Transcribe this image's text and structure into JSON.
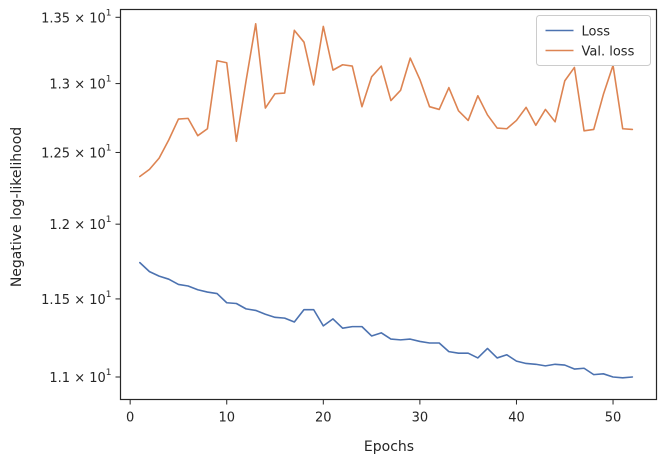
{
  "chart_data": {
    "type": "line",
    "xlabel": "Epochs",
    "ylabel": "Negative log-likelihood",
    "xlim": [
      -1,
      54.5
    ],
    "ylim": [
      10.86,
      13.56
    ],
    "y_scale": "log",
    "grid": false,
    "legend_placement": "top-right",
    "x_ticks": [
      0,
      10,
      20,
      30,
      40,
      50
    ],
    "x_tick_labels": [
      "0",
      "10",
      "20",
      "30",
      "40",
      "50"
    ],
    "y_ticks": [
      11.0,
      11.5,
      12.0,
      12.5,
      13.0,
      13.5
    ],
    "y_tick_labels": [
      {
        "mantissa": "1.1",
        "exp": "1"
      },
      {
        "mantissa": "1.15",
        "exp": "1"
      },
      {
        "mantissa": "1.2",
        "exp": "1"
      },
      {
        "mantissa": "1.25",
        "exp": "1"
      },
      {
        "mantissa": "1.3",
        "exp": "1"
      },
      {
        "mantissa": "1.35",
        "exp": "1"
      }
    ],
    "series": [
      {
        "name": "Loss",
        "color": "#4c72b0",
        "x": [
          1,
          2,
          3,
          4,
          5,
          6,
          7,
          8,
          9,
          10,
          11,
          12,
          13,
          14,
          15,
          16,
          17,
          18,
          19,
          20,
          21,
          22,
          23,
          24,
          25,
          26,
          27,
          28,
          29,
          30,
          31,
          32,
          33,
          34,
          35,
          36,
          37,
          38,
          39,
          40,
          41,
          42,
          43,
          44,
          45,
          46,
          47,
          48,
          49,
          50,
          51,
          52
        ],
        "values": [
          11.74,
          11.68,
          11.65,
          11.63,
          11.595,
          11.585,
          11.56,
          11.545,
          11.535,
          11.475,
          11.47,
          11.435,
          11.425,
          11.4,
          11.38,
          11.375,
          11.35,
          11.43,
          11.43,
          11.325,
          11.37,
          11.31,
          11.32,
          11.32,
          11.26,
          11.28,
          11.24,
          11.235,
          11.24,
          11.225,
          11.215,
          11.215,
          11.16,
          11.15,
          11.15,
          11.12,
          11.18,
          11.12,
          11.14,
          11.1,
          11.085,
          11.08,
          11.07,
          11.08,
          11.075,
          11.05,
          11.055,
          11.015,
          11.02,
          11.0,
          10.995,
          11.0
        ]
      },
      {
        "name": "Val. loss",
        "color": "#dd8452",
        "x": [
          1,
          2,
          3,
          4,
          5,
          6,
          7,
          8,
          9,
          10,
          11,
          12,
          13,
          14,
          15,
          16,
          17,
          18,
          19,
          20,
          21,
          22,
          23,
          24,
          25,
          26,
          27,
          28,
          29,
          30,
          31,
          32,
          33,
          34,
          35,
          36,
          37,
          38,
          39,
          40,
          41,
          42,
          43,
          44,
          45,
          46,
          47,
          48,
          49,
          50,
          51,
          52
        ],
        "values": [
          12.33,
          12.38,
          12.46,
          12.59,
          12.74,
          12.745,
          12.62,
          12.67,
          13.17,
          13.155,
          12.58,
          13.02,
          13.45,
          12.82,
          12.925,
          12.93,
          13.4,
          13.31,
          12.99,
          13.43,
          13.1,
          13.14,
          13.13,
          12.83,
          13.05,
          13.13,
          12.875,
          12.95,
          13.19,
          13.03,
          12.83,
          12.81,
          12.97,
          12.8,
          12.73,
          12.91,
          12.77,
          12.675,
          12.67,
          12.73,
          12.825,
          12.695,
          12.81,
          12.72,
          13.02,
          13.12,
          12.655,
          12.665,
          12.92,
          13.135,
          12.67,
          12.665
        ]
      }
    ]
  }
}
